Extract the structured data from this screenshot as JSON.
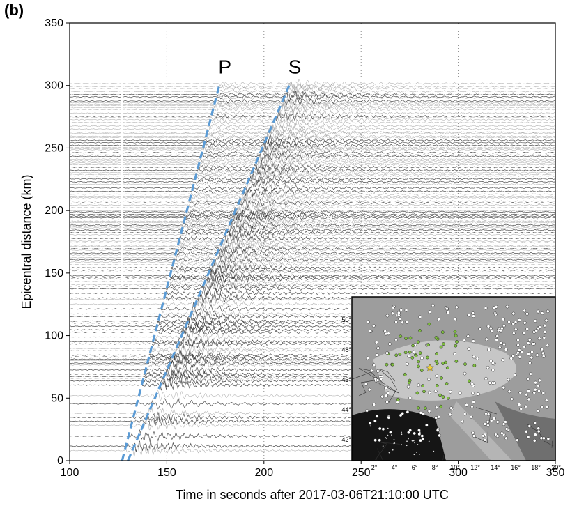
{
  "panel_label": "(b)",
  "chart_data": {
    "type": "line",
    "description_kind": "seismic record section",
    "xlabel": "Time in seconds after 2017-03-06T21:10:00 UTC",
    "ylabel": "Epicentral distance (km)",
    "xlim": [
      100,
      350
    ],
    "ylim": [
      0,
      350
    ],
    "x_ticks": [
      100,
      150,
      200,
      250,
      300,
      350
    ],
    "y_ticks": [
      0,
      50,
      100,
      150,
      200,
      250,
      300,
      350
    ],
    "grid": "vertical-dotted",
    "trace_color": "#333333",
    "phases": [
      {
        "name": "P",
        "color": "#5b9bd5",
        "points": [
          [
            127,
            0
          ],
          [
            177,
            300
          ]
        ]
      },
      {
        "name": "S",
        "color": "#5b9bd5",
        "points": [
          [
            130,
            0
          ],
          [
            213,
            300
          ]
        ]
      }
    ],
    "inset": {
      "lon_ticks": [
        "2°",
        "4°",
        "6°",
        "8°",
        "10°",
        "12°",
        "14°",
        "16°",
        "18°",
        "20°"
      ],
      "lat_ticks": [
        "42°",
        "44°",
        "46°",
        "48°",
        "50°"
      ],
      "station_color_near": "#7fbf3f",
      "station_color_far": "#ffffff",
      "epicenter_color": "#f2d43a"
    }
  }
}
